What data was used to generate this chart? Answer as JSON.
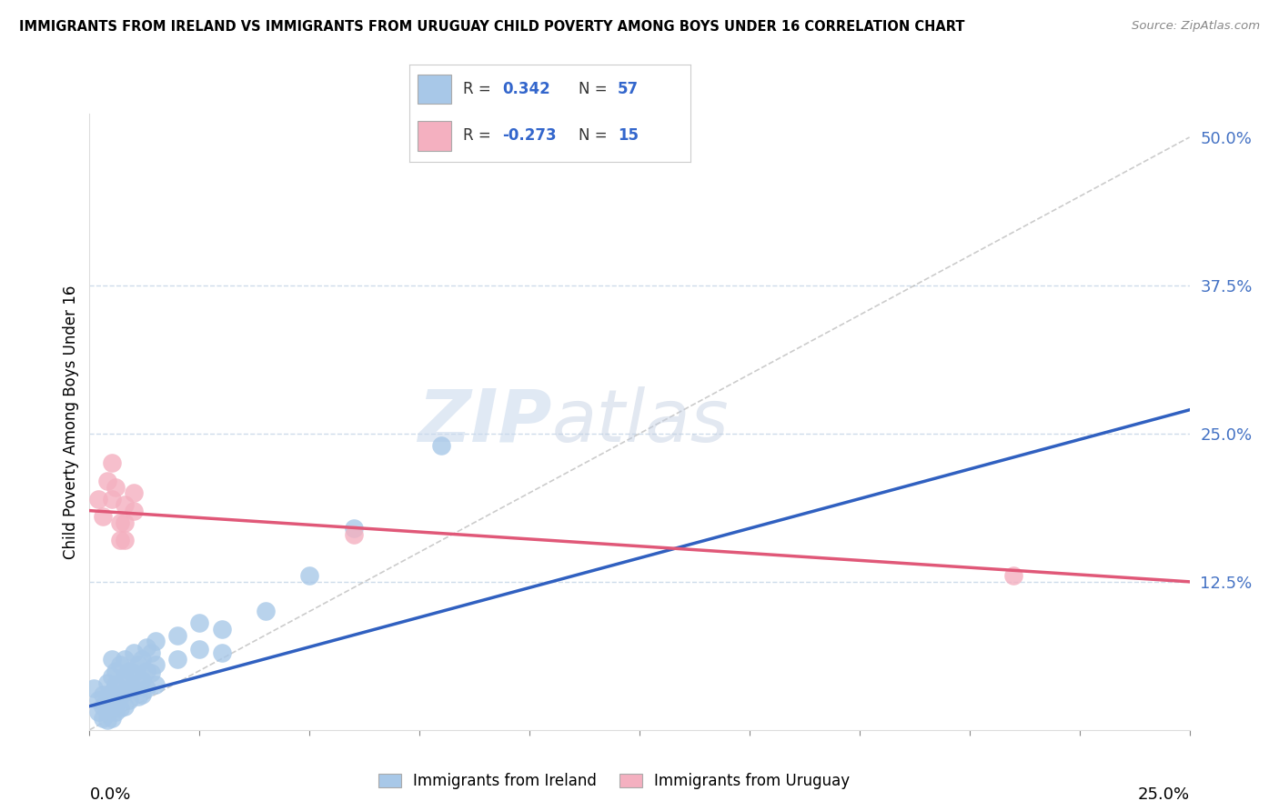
{
  "title": "IMMIGRANTS FROM IRELAND VS IMMIGRANTS FROM URUGUAY CHILD POVERTY AMONG BOYS UNDER 16 CORRELATION CHART",
  "source": "Source: ZipAtlas.com",
  "ylabel": "Child Poverty Among Boys Under 16",
  "y_ticks": [
    0.0,
    0.125,
    0.25,
    0.375,
    0.5
  ],
  "y_tick_labels": [
    "",
    "12.5%",
    "25.0%",
    "37.5%",
    "50.0%"
  ],
  "x_lim": [
    0.0,
    0.25
  ],
  "y_lim": [
    0.0,
    0.52
  ],
  "legend_ireland": "Immigrants from Ireland",
  "legend_uruguay": "Immigrants from Uruguay",
  "R_ireland": 0.342,
  "N_ireland": 57,
  "R_uruguay": -0.273,
  "N_uruguay": 15,
  "ireland_color": "#a8c8e8",
  "uruguay_color": "#f4b0c0",
  "ireland_line_color": "#3060c0",
  "uruguay_line_color": "#e05878",
  "watermark_zip": "ZIP",
  "watermark_atlas": "atlas",
  "ireland_scatter": [
    [
      0.001,
      0.035
    ],
    [
      0.002,
      0.025
    ],
    [
      0.002,
      0.015
    ],
    [
      0.003,
      0.03
    ],
    [
      0.003,
      0.02
    ],
    [
      0.003,
      0.01
    ],
    [
      0.004,
      0.04
    ],
    [
      0.004,
      0.028
    ],
    [
      0.004,
      0.018
    ],
    [
      0.004,
      0.008
    ],
    [
      0.005,
      0.06
    ],
    [
      0.005,
      0.045
    ],
    [
      0.005,
      0.032
    ],
    [
      0.005,
      0.02
    ],
    [
      0.005,
      0.01
    ],
    [
      0.006,
      0.05
    ],
    [
      0.006,
      0.038
    ],
    [
      0.006,
      0.025
    ],
    [
      0.006,
      0.015
    ],
    [
      0.007,
      0.055
    ],
    [
      0.007,
      0.04
    ],
    [
      0.007,
      0.028
    ],
    [
      0.007,
      0.018
    ],
    [
      0.008,
      0.06
    ],
    [
      0.008,
      0.045
    ],
    [
      0.008,
      0.032
    ],
    [
      0.008,
      0.02
    ],
    [
      0.009,
      0.05
    ],
    [
      0.009,
      0.035
    ],
    [
      0.009,
      0.025
    ],
    [
      0.01,
      0.065
    ],
    [
      0.01,
      0.048
    ],
    [
      0.01,
      0.035
    ],
    [
      0.011,
      0.055
    ],
    [
      0.011,
      0.04
    ],
    [
      0.011,
      0.028
    ],
    [
      0.012,
      0.06
    ],
    [
      0.012,
      0.042
    ],
    [
      0.012,
      0.03
    ],
    [
      0.013,
      0.07
    ],
    [
      0.013,
      0.05
    ],
    [
      0.013,
      0.035
    ],
    [
      0.014,
      0.065
    ],
    [
      0.014,
      0.048
    ],
    [
      0.015,
      0.075
    ],
    [
      0.015,
      0.055
    ],
    [
      0.015,
      0.038
    ],
    [
      0.02,
      0.08
    ],
    [
      0.02,
      0.06
    ],
    [
      0.025,
      0.09
    ],
    [
      0.025,
      0.068
    ],
    [
      0.03,
      0.085
    ],
    [
      0.03,
      0.065
    ],
    [
      0.04,
      0.1
    ],
    [
      0.05,
      0.13
    ],
    [
      0.06,
      0.17
    ],
    [
      0.08,
      0.24
    ]
  ],
  "uruguay_scatter": [
    [
      0.002,
      0.195
    ],
    [
      0.003,
      0.18
    ],
    [
      0.004,
      0.21
    ],
    [
      0.005,
      0.225
    ],
    [
      0.005,
      0.195
    ],
    [
      0.006,
      0.205
    ],
    [
      0.007,
      0.175
    ],
    [
      0.007,
      0.16
    ],
    [
      0.008,
      0.19
    ],
    [
      0.008,
      0.175
    ],
    [
      0.008,
      0.16
    ],
    [
      0.01,
      0.2
    ],
    [
      0.01,
      0.185
    ],
    [
      0.06,
      0.165
    ],
    [
      0.21,
      0.13
    ]
  ],
  "ireland_line": {
    "x0": 0.0,
    "y0": 0.02,
    "x1": 0.25,
    "y1": 0.27
  },
  "uruguay_line": {
    "x0": 0.0,
    "y0": 0.185,
    "x1": 0.25,
    "y1": 0.125
  },
  "diag_line": {
    "x0": 0.0,
    "y0": 0.0,
    "x1": 0.25,
    "y1": 0.5
  }
}
